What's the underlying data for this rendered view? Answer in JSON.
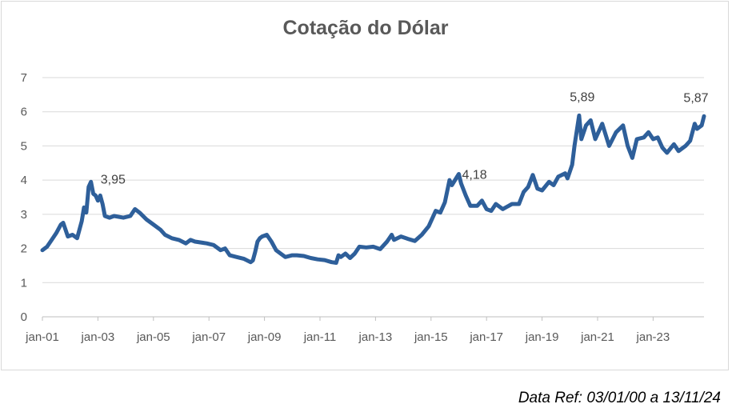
{
  "chart_data": {
    "type": "line",
    "title": "Cotação do Dólar",
    "xlabel": "",
    "ylabel": "",
    "ylim": [
      0,
      7
    ],
    "xlim": [
      "2001-01",
      "2024-11"
    ],
    "grid": "horizontal",
    "legend": "none",
    "yticks": [
      "0",
      "1",
      "2",
      "3",
      "4",
      "5",
      "6",
      "7"
    ],
    "xticks": [
      "jan-01",
      "jan-03",
      "jan-05",
      "jan-07",
      "jan-09",
      "jan-11",
      "jan-13",
      "jan-15",
      "jan-17",
      "jan-19",
      "jan-21",
      "jan-23"
    ],
    "series": [
      {
        "color": "#2e5f9a",
        "points": [
          [
            "2001-01",
            1.95
          ],
          [
            "2001-03",
            2.05
          ],
          [
            "2001-05",
            2.25
          ],
          [
            "2001-07",
            2.45
          ],
          [
            "2001-09",
            2.7
          ],
          [
            "2001-10",
            2.75
          ],
          [
            "2001-12",
            2.35
          ],
          [
            "2002-02",
            2.4
          ],
          [
            "2002-04",
            2.3
          ],
          [
            "2002-06",
            2.8
          ],
          [
            "2002-07",
            3.2
          ],
          [
            "2002-08",
            3.05
          ],
          [
            "2002-09",
            3.8
          ],
          [
            "2002-10",
            3.95
          ],
          [
            "2002-11",
            3.6
          ],
          [
            "2002-12",
            3.55
          ],
          [
            "2003-01",
            3.4
          ],
          [
            "2003-02",
            3.55
          ],
          [
            "2003-03",
            3.3
          ],
          [
            "2003-04",
            2.95
          ],
          [
            "2003-06",
            2.9
          ],
          [
            "2003-08",
            2.95
          ],
          [
            "2003-12",
            2.9
          ],
          [
            "2004-03",
            2.95
          ],
          [
            "2004-05",
            3.15
          ],
          [
            "2004-07",
            3.05
          ],
          [
            "2004-10",
            2.85
          ],
          [
            "2005-01",
            2.7
          ],
          [
            "2005-04",
            2.55
          ],
          [
            "2005-06",
            2.4
          ],
          [
            "2005-09",
            2.3
          ],
          [
            "2005-12",
            2.25
          ],
          [
            "2006-03",
            2.15
          ],
          [
            "2006-05",
            2.25
          ],
          [
            "2006-07",
            2.2
          ],
          [
            "2006-12",
            2.15
          ],
          [
            "2007-03",
            2.1
          ],
          [
            "2007-06",
            1.95
          ],
          [
            "2007-08",
            2.0
          ],
          [
            "2007-10",
            1.8
          ],
          [
            "2008-01",
            1.75
          ],
          [
            "2008-04",
            1.7
          ],
          [
            "2008-07",
            1.6
          ],
          [
            "2008-08",
            1.65
          ],
          [
            "2008-09",
            1.9
          ],
          [
            "2008-10",
            2.2
          ],
          [
            "2008-11",
            2.3
          ],
          [
            "2008-12",
            2.35
          ],
          [
            "2009-02",
            2.4
          ],
          [
            "2009-04",
            2.2
          ],
          [
            "2009-06",
            1.95
          ],
          [
            "2009-08",
            1.85
          ],
          [
            "2009-10",
            1.75
          ],
          [
            "2010-01",
            1.8
          ],
          [
            "2010-03",
            1.8
          ],
          [
            "2010-06",
            1.78
          ],
          [
            "2010-09",
            1.72
          ],
          [
            "2010-12",
            1.68
          ],
          [
            "2011-03",
            1.66
          ],
          [
            "2011-06",
            1.6
          ],
          [
            "2011-08",
            1.58
          ],
          [
            "2011-09",
            1.8
          ],
          [
            "2011-10",
            1.75
          ],
          [
            "2011-12",
            1.85
          ],
          [
            "2012-02",
            1.72
          ],
          [
            "2012-04",
            1.85
          ],
          [
            "2012-06",
            2.05
          ],
          [
            "2012-09",
            2.03
          ],
          [
            "2012-12",
            2.05
          ],
          [
            "2013-03",
            1.98
          ],
          [
            "2013-06",
            2.2
          ],
          [
            "2013-08",
            2.4
          ],
          [
            "2013-09",
            2.25
          ],
          [
            "2013-12",
            2.35
          ],
          [
            "2014-03",
            2.28
          ],
          [
            "2014-06",
            2.22
          ],
          [
            "2014-09",
            2.4
          ],
          [
            "2014-12",
            2.65
          ],
          [
            "2015-03",
            3.1
          ],
          [
            "2015-05",
            3.05
          ],
          [
            "2015-07",
            3.35
          ],
          [
            "2015-09",
            4.0
          ],
          [
            "2015-10",
            3.85
          ],
          [
            "2016-01",
            4.18
          ],
          [
            "2016-02",
            3.9
          ],
          [
            "2016-04",
            3.55
          ],
          [
            "2016-06",
            3.25
          ],
          [
            "2016-09",
            3.25
          ],
          [
            "2016-11",
            3.4
          ],
          [
            "2017-01",
            3.15
          ],
          [
            "2017-03",
            3.1
          ],
          [
            "2017-05",
            3.3
          ],
          [
            "2017-08",
            3.15
          ],
          [
            "2017-12",
            3.3
          ],
          [
            "2018-03",
            3.3
          ],
          [
            "2018-05",
            3.65
          ],
          [
            "2018-07",
            3.8
          ],
          [
            "2018-09",
            4.15
          ],
          [
            "2018-11",
            3.75
          ],
          [
            "2019-01",
            3.7
          ],
          [
            "2019-04",
            3.95
          ],
          [
            "2019-06",
            3.85
          ],
          [
            "2019-08",
            4.1
          ],
          [
            "2019-11",
            4.2
          ],
          [
            "2019-12",
            4.05
          ],
          [
            "2020-02",
            4.45
          ],
          [
            "2020-03",
            5.0
          ],
          [
            "2020-05",
            5.89
          ],
          [
            "2020-06",
            5.2
          ],
          [
            "2020-08",
            5.6
          ],
          [
            "2020-10",
            5.75
          ],
          [
            "2020-12",
            5.2
          ],
          [
            "2021-03",
            5.65
          ],
          [
            "2021-06",
            5.0
          ],
          [
            "2021-09",
            5.4
          ],
          [
            "2021-12",
            5.6
          ],
          [
            "2022-02",
            5.0
          ],
          [
            "2022-04",
            4.65
          ],
          [
            "2022-06",
            5.2
          ],
          [
            "2022-09",
            5.25
          ],
          [
            "2022-11",
            5.4
          ],
          [
            "2023-01",
            5.2
          ],
          [
            "2023-03",
            5.25
          ],
          [
            "2023-05",
            4.95
          ],
          [
            "2023-07",
            4.8
          ],
          [
            "2023-10",
            5.05
          ],
          [
            "2023-12",
            4.85
          ],
          [
            "2024-03",
            5.0
          ],
          [
            "2024-05",
            5.15
          ],
          [
            "2024-07",
            5.65
          ],
          [
            "2024-08",
            5.5
          ],
          [
            "2024-10",
            5.6
          ],
          [
            "2024-11",
            5.87
          ]
        ]
      }
    ],
    "annotations": [
      {
        "text": "3,95",
        "x": "2002-10",
        "y": 3.95
      },
      {
        "text": "4,18",
        "x": "2016-01",
        "y": 4.18
      },
      {
        "text": "5,89",
        "x": "2020-05",
        "y": 5.89
      },
      {
        "text": "5,87",
        "x": "2024-11",
        "y": 5.87
      }
    ]
  },
  "footnote": "Data Ref: 03/01/00 a 13/11/24"
}
